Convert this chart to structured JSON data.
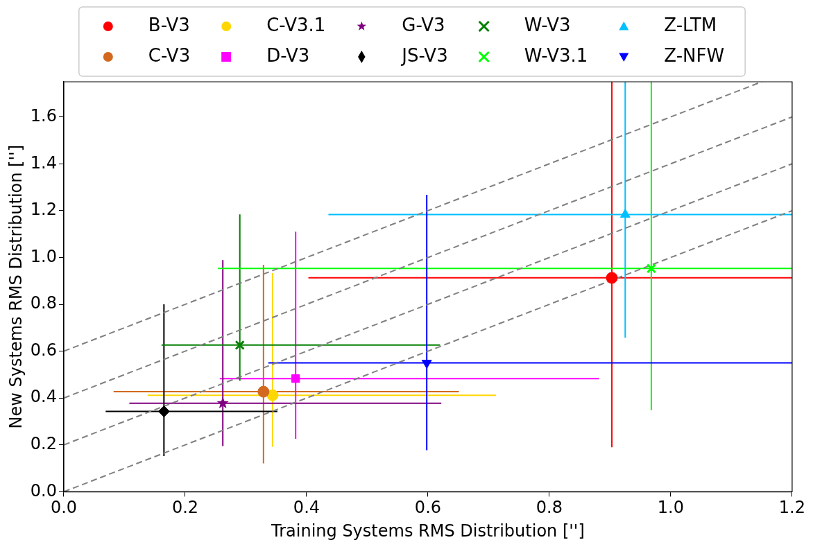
{
  "chart_data": {
    "type": "scatter",
    "xlabel": "Training Systems RMS Distribution ['']",
    "ylabel": "New Systems RMS Distribution ['']",
    "xlim": [
      0,
      1.2
    ],
    "ylim": [
      0,
      1.75
    ],
    "xticks": [
      {
        "value": 0,
        "label": "0.0"
      },
      0.2,
      0.4,
      0.6,
      0.8,
      {
        "value": 1,
        "label": "1.0"
      },
      1.2
    ],
    "yticks": [
      {
        "value": 0,
        "label": "0.0"
      },
      0.2,
      0.4,
      0.6,
      0.8,
      {
        "value": 1,
        "label": "1.0"
      },
      1.2,
      1.4,
      1.6
    ],
    "grid": false,
    "legend": "top",
    "series": [
      {
        "name": "B-V3",
        "color": "#ff0000",
        "marker": "circle",
        "x": [
          0.903
        ],
        "values": [
          0.913
        ],
        "xerrors": [
          [
            0.403,
            1.2
          ]
        ],
        "errors": [
          [
            0.19,
            1.75
          ]
        ]
      },
      {
        "name": "C-V3",
        "color": "#d2691e",
        "marker": "circle",
        "x": [
          0.329
        ],
        "values": [
          0.427
        ],
        "xerrors": [
          [
            0.082,
            0.651
          ]
        ],
        "errors": [
          [
            0.121,
            0.969
          ]
        ]
      },
      {
        "name": "C-V3.1",
        "color": "#ffd700",
        "marker": "circle",
        "x": [
          0.344
        ],
        "values": [
          0.412
        ],
        "xerrors": [
          [
            0.138,
            0.712
          ]
        ],
        "errors": [
          [
            0.192,
            0.933
          ]
        ]
      },
      {
        "name": "D-V3",
        "color": "#ff00ff",
        "marker": "square",
        "x": [
          0.382
        ],
        "values": [
          0.483
        ],
        "xerrors": [
          [
            0.257,
            0.882
          ]
        ],
        "errors": [
          [
            0.226,
            1.11
          ]
        ]
      },
      {
        "name": "G-V3",
        "color": "#800080",
        "marker": "star",
        "x": [
          0.262
        ],
        "values": [
          0.378
        ],
        "xerrors": [
          [
            0.108,
            0.622
          ]
        ],
        "errors": [
          [
            0.195,
            0.989
          ]
        ]
      },
      {
        "name": "JS-V3",
        "color": "#000000",
        "marker": "diamond",
        "x": [
          0.165
        ],
        "values": [
          0.343
        ],
        "xerrors": [
          [
            0.069,
            0.352
          ]
        ],
        "errors": [
          [
            0.152,
            0.8
          ]
        ]
      },
      {
        "name": "W-V3",
        "color": "#008000",
        "marker": "cross",
        "x": [
          0.29
        ],
        "values": [
          0.626
        ],
        "xerrors": [
          [
            0.161,
            0.62
          ]
        ],
        "errors": [
          [
            0.474,
            1.184
          ]
        ]
      },
      {
        "name": "W-V3.1",
        "color": "#00ff00",
        "marker": "cross",
        "x": [
          0.968
        ],
        "values": [
          0.953
        ],
        "xerrors": [
          [
            0.254,
            1.2
          ]
        ],
        "errors": [
          [
            0.348,
            1.75
          ]
        ]
      },
      {
        "name": "Z-LTM",
        "color": "#00bfff",
        "marker": "triangle",
        "x": [
          0.925
        ],
        "values": [
          1.183
        ],
        "xerrors": [
          [
            0.436,
            1.2
          ]
        ],
        "errors": [
          [
            0.657,
            1.75
          ]
        ]
      },
      {
        "name": "Z-NFW",
        "color": "#0000ff",
        "marker": "triangle-down",
        "x": [
          0.598
        ],
        "values": [
          0.55
        ],
        "xerrors": [
          [
            0.337,
            1.2
          ]
        ],
        "errors": [
          [
            0.177,
            1.268
          ]
        ]
      },
      {
        "type": "line",
        "color": "#808080",
        "line_style": "dashed",
        "marker": "none",
        "x": [
          0,
          1.2
        ],
        "values": [
          0,
          1.2
        ]
      },
      {
        "type": "line",
        "color": "#808080",
        "line_style": "dashed",
        "marker": "none",
        "x": [
          0,
          1.2
        ],
        "values": [
          0.2,
          1.4
        ]
      },
      {
        "type": "line",
        "color": "#808080",
        "line_style": "dashed",
        "marker": "none",
        "x": [
          0,
          1.2
        ],
        "values": [
          0.4,
          1.6
        ]
      },
      {
        "type": "line",
        "color": "#808080",
        "line_style": "dashed",
        "marker": "none",
        "x": [
          0,
          1.15
        ],
        "values": [
          0.6,
          1.75
        ]
      }
    ]
  }
}
